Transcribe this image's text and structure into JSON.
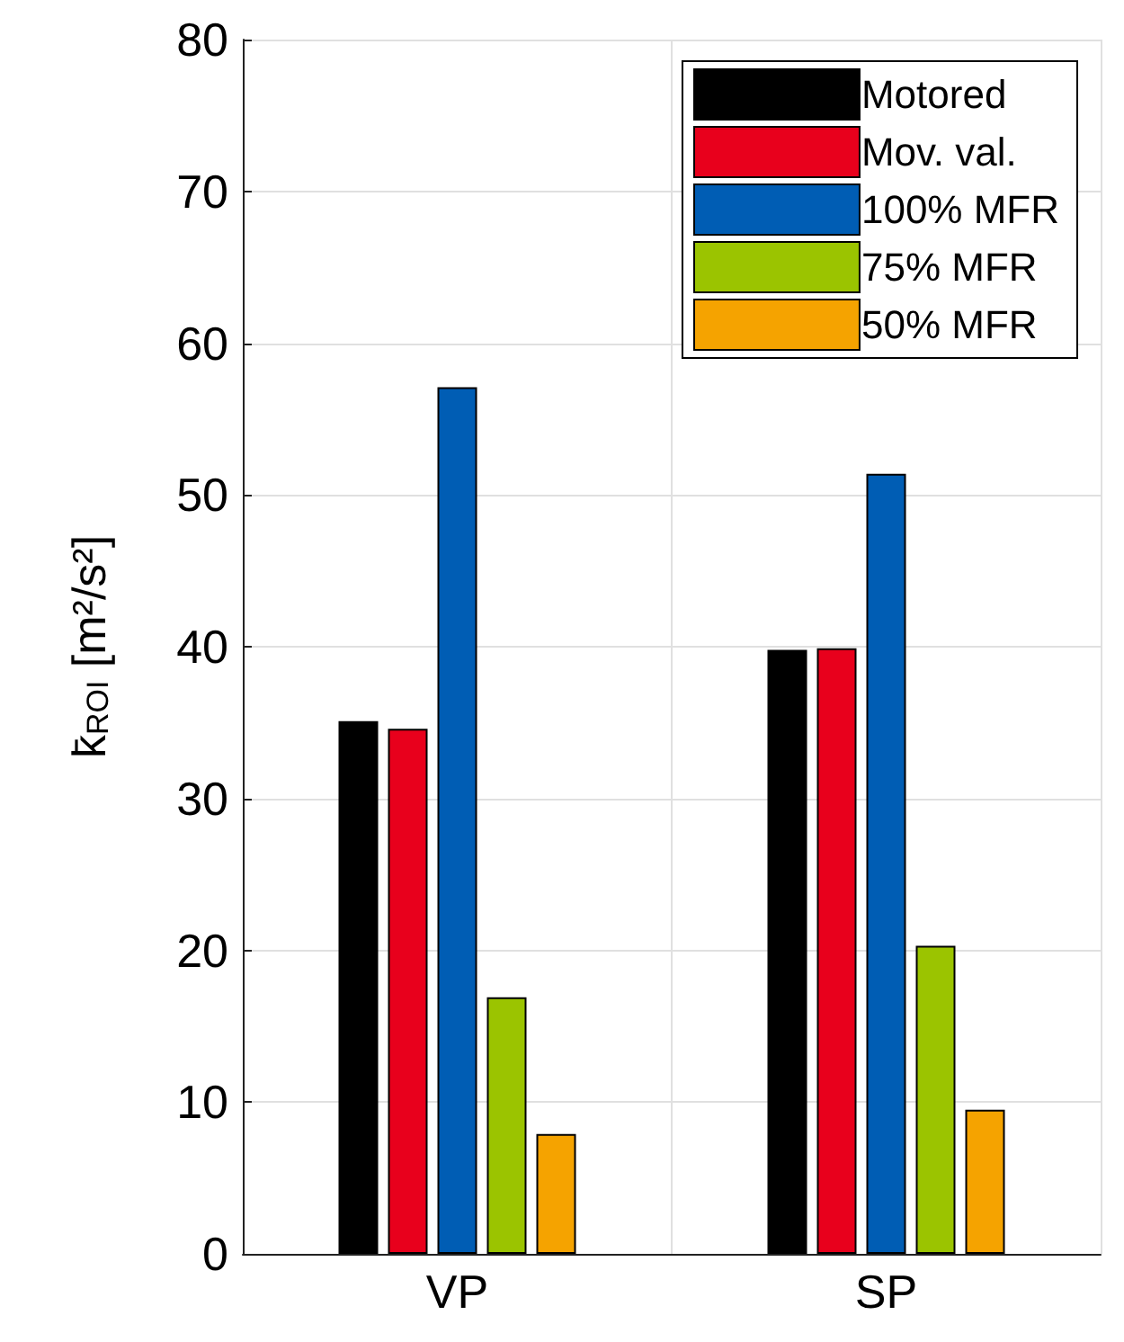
{
  "chart_data": {
    "type": "bar",
    "ylabel": "k̄$_{ROI}$ [m²/s²]",
    "categories": [
      "VP",
      "SP"
    ],
    "series": [
      {
        "name": "Motored",
        "color": "#000000",
        "values": [
          35.1,
          39.8
        ]
      },
      {
        "name": "Mov. val.",
        "color": "#e8001c",
        "values": [
          34.6,
          39.9
        ]
      },
      {
        "name": "100% MFR",
        "color": "#005db4",
        "values": [
          57.1,
          51.4
        ]
      },
      {
        "name": "75% MFR",
        "color": "#9bc400",
        "values": [
          16.9,
          20.3
        ]
      },
      {
        "name": "50% MFR",
        "color": "#f5a300",
        "values": [
          7.9,
          9.5
        ]
      }
    ],
    "ylim": [
      0,
      80
    ],
    "yticks": [
      0,
      10,
      20,
      30,
      40,
      50,
      60,
      70,
      80
    ],
    "grid": true,
    "legend": "top right"
  }
}
